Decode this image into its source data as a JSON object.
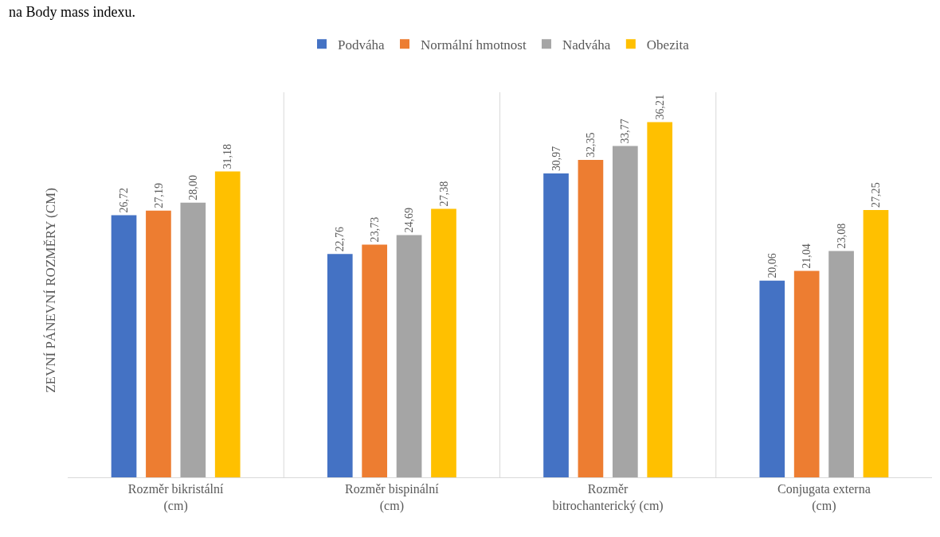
{
  "chart_data": {
    "type": "bar",
    "ylabel": "ZEVNÍ PÁNEVNÍ ROZMĚRY (CM)",
    "annotations": [
      "na Body mass indexu."
    ],
    "categories": [
      "Rozměr bikristální (cm)",
      "Rozměr bispinální (cm)",
      "Rozměr bitrochanterický (cm)",
      "Conjugata externa (cm)"
    ],
    "series": [
      {
        "name": "Podváha",
        "color": "#4472c4",
        "values": [
          26.72,
          22.76,
          30.97,
          20.06
        ],
        "value_labels": [
          "26,72",
          "22,76",
          "30,97",
          "20,06"
        ]
      },
      {
        "name": "Normální hmotnost",
        "color": "#ed7d31",
        "values": [
          27.19,
          23.73,
          32.35,
          21.04
        ],
        "value_labels": [
          "27,19",
          "23,73",
          "32,35",
          "21,04"
        ]
      },
      {
        "name": "Nadváha",
        "color": "#a5a5a5",
        "values": [
          28.0,
          24.69,
          33.77,
          23.08
        ],
        "value_labels": [
          "28,00",
          "24,69",
          "33,77",
          "23,08"
        ]
      },
      {
        "name": "Obezita",
        "color": "#ffc000",
        "values": [
          31.18,
          27.38,
          36.21,
          27.25
        ],
        "value_labels": [
          "31,18",
          "27,38",
          "36,21",
          "27,25"
        ]
      }
    ],
    "grid": "x",
    "legend": "top"
  }
}
